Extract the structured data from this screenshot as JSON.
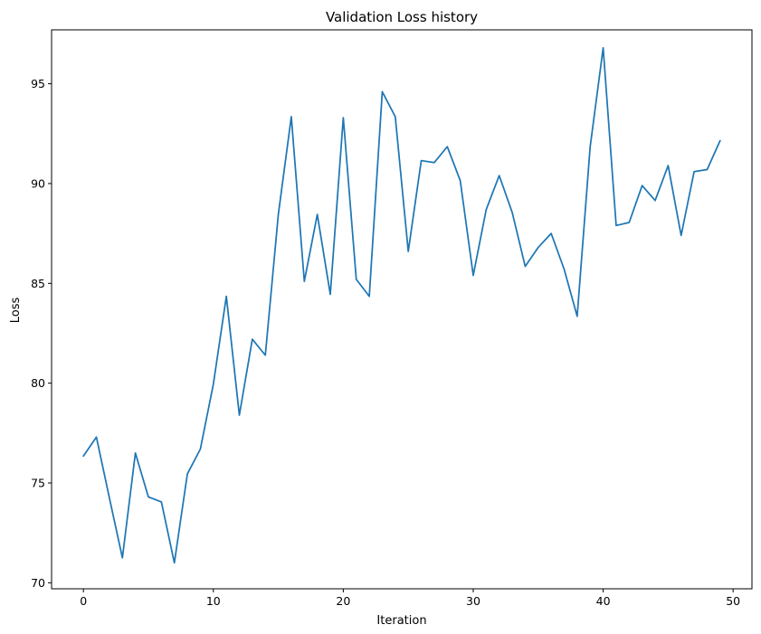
{
  "chart_data": {
    "type": "line",
    "title": "Validation Loss history",
    "xlabel": "Iteration",
    "ylabel": "Loss",
    "xlim": [
      -2.45,
      51.45
    ],
    "ylim": [
      69.7,
      97.7
    ],
    "xticks": [
      0,
      10,
      20,
      30,
      40,
      50
    ],
    "yticks": [
      70,
      75,
      80,
      85,
      90,
      95
    ],
    "grid": false,
    "color": "#1f77b4",
    "series": [
      {
        "x": [
          0,
          1,
          2,
          3,
          4,
          5,
          6,
          7,
          8,
          9,
          10,
          11,
          12,
          13,
          14,
          15,
          16,
          17,
          18,
          19,
          20,
          21,
          22,
          23,
          24,
          25,
          26,
          27,
          28,
          29,
          30,
          31,
          32,
          33,
          34,
          35,
          36,
          37,
          38,
          39,
          40,
          41,
          42,
          43,
          44,
          45,
          46,
          47,
          48,
          49
        ],
        "values": [
          76.35,
          77.3,
          74.25,
          71.25,
          76.5,
          74.3,
          74.05,
          71.0,
          75.45,
          76.7,
          79.95,
          84.35,
          78.4,
          82.2,
          81.4,
          88.45,
          93.35,
          85.1,
          88.45,
          84.45,
          93.3,
          85.2,
          84.35,
          94.6,
          93.35,
          86.6,
          91.15,
          91.05,
          91.85,
          90.15,
          85.4,
          88.7,
          90.4,
          88.55,
          85.85,
          86.8,
          87.5,
          85.7,
          83.35,
          91.85,
          96.8,
          87.9,
          88.05,
          89.9,
          89.15,
          90.9,
          87.4,
          90.6,
          90.7,
          92.15
        ]
      }
    ]
  }
}
